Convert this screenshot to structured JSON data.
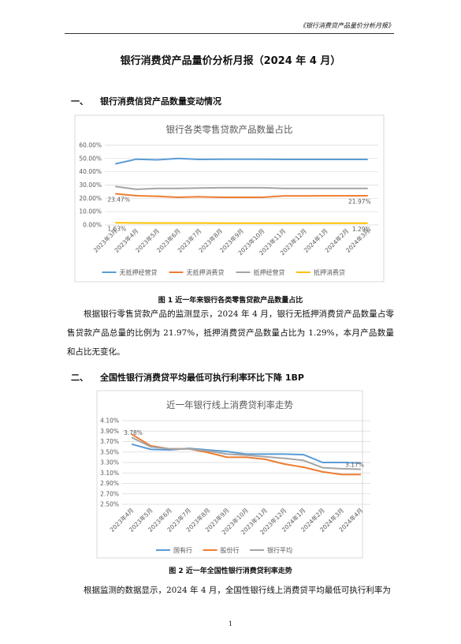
{
  "header": "《银行消费贷产品量价分析月报》",
  "title": "银行消费贷产品量价分析月报（2024 年 4 月）",
  "sections": [
    {
      "number": "一、",
      "heading": "银行消费信贷产品数量变动情况"
    },
    {
      "number": "二、",
      "heading": "全国性银行消费贷平均最低可执行利率环比下降 1BP"
    }
  ],
  "figures": [
    {
      "caption": "图 1  近一年来银行各类零售贷款产品数量占比"
    },
    {
      "caption": "图 2  近一年全国性银行消费贷利率走势"
    }
  ],
  "paragraphs": [
    "根据银行零售贷款产品的监测显示，2024 年 4 月，银行无抵押消费贷产品数量占零售贷款产品总量的比例为 21.97%，抵押消费贷产品数量占比为 1.29%，本月产品数量和占比无变化。",
    "根据监测的数据显示，2024 年 4 月，全国性银行线上消费贷平均最低可执行利率为"
  ],
  "page_number": "1",
  "chart_data": [
    {
      "type": "line",
      "title": "银行各类零售贷款产品数量占比",
      "categories": [
        "2023年3月",
        "2023年4月",
        "2023年5月",
        "2023年6月",
        "2023年7月",
        "2023年8月",
        "2023年9月",
        "2023年10月",
        "2023年11月",
        "2023年12月",
        "2024年1月",
        "2024年2月",
        "2024年3月"
      ],
      "ylim": [
        0,
        60
      ],
      "yticks": [
        {
          "value": 0,
          "label": "0.00%"
        },
        {
          "value": 10,
          "label": "10.00%"
        },
        {
          "value": 20,
          "label": "20.00%"
        },
        {
          "value": 30,
          "label": "30.00%"
        },
        {
          "value": 40,
          "label": "40.00%"
        },
        {
          "value": 50,
          "label": "50.00%"
        },
        {
          "value": 60,
          "label": "60.00%"
        }
      ],
      "grid": true,
      "legend": "bottom",
      "series": [
        {
          "name": "无抵押经营贷",
          "color": "#5b9bd5",
          "values": [
            46,
            49.5,
            49,
            50,
            49.3,
            49.5,
            49.5,
            49.5,
            49.3,
            49.3,
            49.3,
            49.3,
            49.3
          ]
        },
        {
          "name": "无抵押消费贷",
          "color": "#ed7d31",
          "values": [
            23.47,
            22,
            21.5,
            20.8,
            21.2,
            20.8,
            20.8,
            20.8,
            21.8,
            21.8,
            21.9,
            21.9,
            21.97
          ],
          "value_labels": [
            "23.47%",
            null,
            null,
            null,
            null,
            null,
            null,
            null,
            null,
            null,
            null,
            null,
            "21.97%"
          ]
        },
        {
          "name": "抵押经营贷",
          "color": "#a5a5a5",
          "values": [
            29,
            26.8,
            27.5,
            27.5,
            27.8,
            28,
            28,
            28,
            27.5,
            27.5,
            27.5,
            27.5,
            27.5
          ]
        },
        {
          "name": "抵押消费贷",
          "color": "#ffc000",
          "values": [
            1.63,
            1.5,
            1.4,
            1.4,
            1.4,
            1.3,
            1.3,
            1.3,
            1.3,
            1.3,
            1.3,
            1.3,
            1.29
          ],
          "value_labels": [
            "1.63%",
            null,
            null,
            null,
            null,
            null,
            null,
            null,
            null,
            null,
            null,
            null,
            "1.29%"
          ]
        }
      ]
    },
    {
      "type": "line",
      "title": "近一年银行线上消费贷利率走势",
      "categories": [
        "2023年4月",
        "2023年5月",
        "2023年6月",
        "2023年7月",
        "2023年8月",
        "2023年9月",
        "2023年10月",
        "2023年11月",
        "2023年12月",
        "2024年1月",
        "2024年2月",
        "2024年3月",
        "2024年4月"
      ],
      "ylim": [
        2.5,
        4.1
      ],
      "yticks": [
        {
          "value": 2.5,
          "label": "2.50%"
        },
        {
          "value": 2.7,
          "label": "2.70%"
        },
        {
          "value": 2.9,
          "label": "2.90%"
        },
        {
          "value": 3.1,
          "label": "3.10%"
        },
        {
          "value": 3.3,
          "label": "3.30%"
        },
        {
          "value": 3.5,
          "label": "3.50%"
        },
        {
          "value": 3.7,
          "label": "3.70%"
        },
        {
          "value": 3.9,
          "label": "3.90%"
        },
        {
          "value": 4.1,
          "label": "4.10%"
        }
      ],
      "grid": true,
      "legend": "bottom",
      "series": [
        {
          "name": "国有行",
          "color": "#5b9bd5",
          "values": [
            3.65,
            3.55,
            3.54,
            3.57,
            3.54,
            3.51,
            3.46,
            3.46,
            3.46,
            3.45,
            3.3,
            3.3,
            3.29
          ]
        },
        {
          "name": "股份行",
          "color": "#ed7d31",
          "values": [
            3.84,
            3.62,
            3.56,
            3.56,
            3.49,
            3.4,
            3.4,
            3.36,
            3.27,
            3.21,
            3.12,
            3.07,
            3.07
          ]
        },
        {
          "name": "银行平均",
          "color": "#a5a5a5",
          "values": [
            3.78,
            3.6,
            3.56,
            3.56,
            3.52,
            3.46,
            3.44,
            3.41,
            3.38,
            3.34,
            3.2,
            3.18,
            3.17
          ],
          "value_labels": [
            "3.78%",
            null,
            null,
            null,
            null,
            null,
            null,
            null,
            null,
            null,
            null,
            null,
            "3.17%"
          ]
        }
      ]
    }
  ]
}
